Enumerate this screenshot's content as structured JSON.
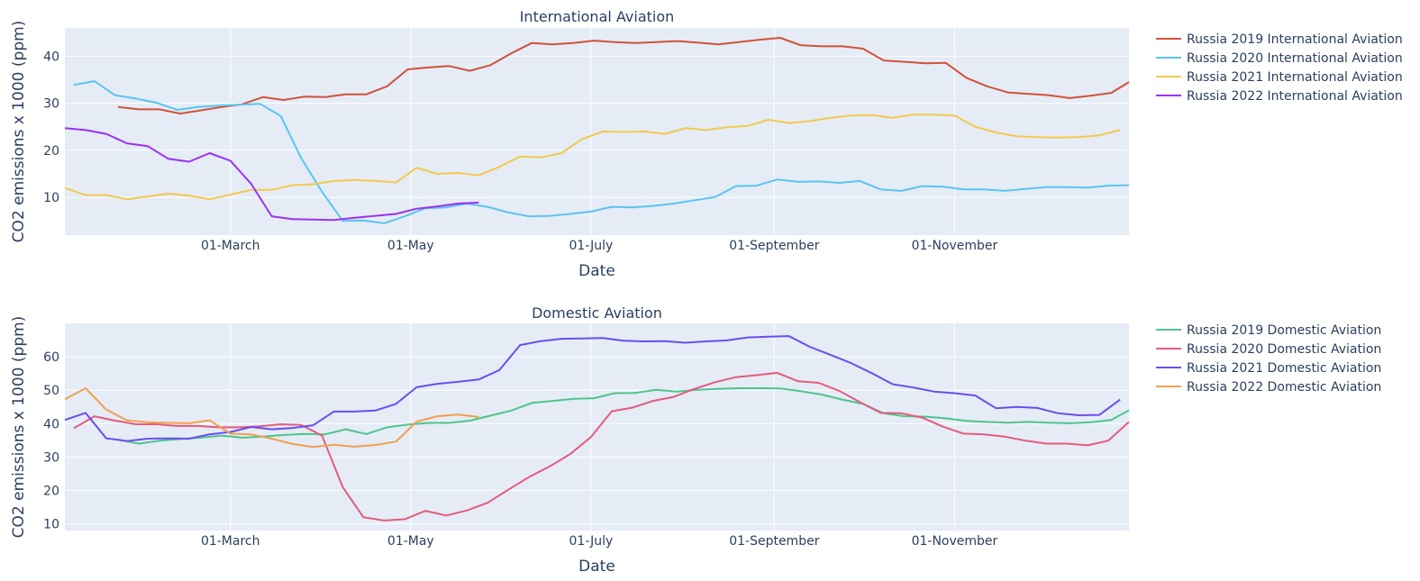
{
  "chart_data": [
    {
      "type": "line",
      "title": "International Aviation",
      "xlabel": "Date",
      "ylabel": "CO2 emissions x 1000 (ppm)",
      "x_ticks": [
        {
          "label": "01-March",
          "day": 60
        },
        {
          "label": "01-May",
          "day": 121
        },
        {
          "label": "01-July",
          "day": 182
        },
        {
          "label": "01-September",
          "day": 244
        },
        {
          "label": "01-November",
          "day": 305
        }
      ],
      "xlim": [
        4,
        364
      ],
      "ylim": [
        2,
        46
      ],
      "y_ticks": [
        10,
        20,
        30,
        40
      ],
      "grid": true,
      "legend_position": "right",
      "series": [
        {
          "name": "Russia 2019 International Aviation",
          "color": "#d0523a",
          "x": [
            22,
            29,
            36,
            43,
            50,
            57,
            64,
            71,
            78,
            85,
            92,
            99,
            106,
            113,
            120,
            127,
            134,
            141,
            148,
            155,
            162,
            169,
            176,
            183,
            190,
            197,
            204,
            211,
            218,
            225,
            232,
            239,
            246,
            253,
            260,
            267,
            274,
            281,
            288,
            295,
            302,
            309,
            316,
            323,
            330,
            337,
            344,
            351,
            358,
            364
          ],
          "y": [
            29.2,
            28.7,
            28.7,
            27.8,
            28.5,
            29.2,
            29.8,
            31.3,
            30.7,
            31.4,
            31.3,
            31.9,
            31.9,
            33.6,
            37.2,
            37.6,
            37.9,
            36.9,
            38.1,
            40.6,
            42.8,
            42.5,
            42.8,
            43.3,
            43.0,
            42.8,
            43.0,
            43.2,
            42.9,
            42.5,
            43.0,
            43.5,
            43.9,
            42.3,
            42.1,
            42.1,
            41.6,
            39.1,
            38.8,
            38.5,
            38.6,
            35.4,
            33.6,
            32.3,
            32.0,
            31.7,
            31.1,
            31.6,
            32.2,
            34.5
          ]
        },
        {
          "name": "Russia 2020 International Aviation",
          "color": "#5ac4f0",
          "x": [
            7,
            14,
            21,
            28,
            35,
            42,
            49,
            56,
            63,
            70,
            77,
            84,
            91,
            98,
            105,
            112,
            119,
            126,
            133,
            140,
            147,
            154,
            161,
            168,
            175,
            182,
            189,
            196,
            203,
            210,
            217,
            224,
            231,
            238,
            245,
            252,
            259,
            266,
            273,
            280,
            287,
            294,
            301,
            308,
            315,
            322,
            329,
            336,
            343,
            350,
            357,
            364
          ],
          "y": [
            33.9,
            34.7,
            31.7,
            31.0,
            30.1,
            28.6,
            29.2,
            29.5,
            29.7,
            29.9,
            27.3,
            18.3,
            11.2,
            5.0,
            5.1,
            4.5,
            6.0,
            7.7,
            7.9,
            8.7,
            8.0,
            6.8,
            6.0,
            6.1,
            6.5,
            7.0,
            8.0,
            7.9,
            8.2,
            8.7,
            9.4,
            10.1,
            12.4,
            12.5,
            13.8,
            13.3,
            13.4,
            13.1,
            13.5,
            11.7,
            11.4,
            12.4,
            12.3,
            11.7,
            11.7,
            11.4,
            11.8,
            12.2,
            12.2,
            12.1,
            12.5,
            12.6
          ]
        },
        {
          "name": "Russia 2021 International Aviation",
          "color": "#f2c94c",
          "x": [
            4,
            11,
            18,
            25,
            32,
            39,
            46,
            53,
            60,
            67,
            74,
            81,
            88,
            95,
            102,
            109,
            116,
            123,
            130,
            137,
            144,
            151,
            158,
            165,
            172,
            179,
            186,
            193,
            200,
            207,
            214,
            221,
            228,
            235,
            242,
            249,
            256,
            263,
            270,
            277,
            284,
            291,
            298,
            305,
            312,
            319,
            326,
            333,
            340,
            347,
            354,
            361
          ],
          "y": [
            12.0,
            10.5,
            10.5,
            9.6,
            10.2,
            10.8,
            10.4,
            9.6,
            10.6,
            11.6,
            11.6,
            12.6,
            12.8,
            13.5,
            13.7,
            13.5,
            13.2,
            16.3,
            15.0,
            15.2,
            14.7,
            16.5,
            18.7,
            18.5,
            19.4,
            22.4,
            24.0,
            23.9,
            24.0,
            23.5,
            24.7,
            24.3,
            24.9,
            25.2,
            26.5,
            25.8,
            26.2,
            26.9,
            27.4,
            27.5,
            26.9,
            27.6,
            27.6,
            27.4,
            25.0,
            23.8,
            23.0,
            22.8,
            22.7,
            22.8,
            23.2,
            24.3
          ]
        },
        {
          "name": "Russia 2022 International Aviation",
          "color": "#9b30f5",
          "x": [
            4,
            11,
            18,
            25,
            32,
            39,
            46,
            53,
            60,
            67,
            74,
            81,
            88,
            95,
            102,
            109,
            116,
            123,
            130,
            137,
            144
          ],
          "y": [
            24.7,
            24.3,
            23.5,
            21.5,
            20.9,
            18.2,
            17.6,
            19.4,
            17.8,
            12.9,
            6.0,
            5.4,
            5.3,
            5.2,
            5.7,
            6.1,
            6.5,
            7.6,
            8.1,
            8.7,
            8.9
          ]
        }
      ]
    },
    {
      "type": "line",
      "title": "Domestic Aviation",
      "xlabel": "Date",
      "ylabel": "CO2 emissions x 1000 (ppm)",
      "x_ticks": [
        {
          "label": "01-March",
          "day": 60
        },
        {
          "label": "01-May",
          "day": 121
        },
        {
          "label": "01-July",
          "day": 182
        },
        {
          "label": "01-September",
          "day": 244
        },
        {
          "label": "01-November",
          "day": 305
        }
      ],
      "xlim": [
        4,
        364
      ],
      "ylim": [
        8,
        70
      ],
      "y_ticks": [
        10,
        20,
        30,
        40,
        50,
        60
      ],
      "grid": true,
      "legend_position": "right",
      "series": [
        {
          "name": "Russia 2019 Domestic Aviation",
          "color": "#4ec48c",
          "x": [
            22,
            29,
            36,
            43,
            50,
            57,
            64,
            71,
            78,
            85,
            92,
            99,
            106,
            113,
            120,
            127,
            134,
            141,
            148,
            155,
            162,
            169,
            176,
            183,
            190,
            197,
            204,
            211,
            218,
            225,
            232,
            239,
            246,
            253,
            260,
            267,
            274,
            281,
            288,
            295,
            302,
            309,
            316,
            323,
            330,
            337,
            344,
            351,
            358,
            364
          ],
          "y": [
            35.2,
            34.0,
            34.9,
            35.4,
            35.8,
            36.4,
            35.8,
            36.1,
            36.6,
            36.9,
            36.8,
            38.3,
            36.9,
            38.9,
            39.7,
            40.2,
            40.2,
            40.9,
            42.4,
            43.9,
            46.2,
            46.8,
            47.4,
            47.6,
            49.1,
            49.2,
            50.1,
            49.6,
            50.1,
            50.4,
            50.6,
            50.6,
            50.5,
            49.7,
            48.7,
            47.2,
            45.9,
            43.1,
            42.2,
            42.1,
            41.6,
            40.8,
            40.5,
            40.3,
            40.5,
            40.3,
            40.1,
            40.4,
            41.1,
            44.0
          ]
        },
        {
          "name": "Russia 2020 Domestic Aviation",
          "color": "#e55a7d",
          "x": [
            7,
            14,
            21,
            28,
            35,
            42,
            49,
            56,
            63,
            70,
            77,
            84,
            91,
            98,
            105,
            112,
            119,
            126,
            133,
            140,
            147,
            154,
            161,
            168,
            175,
            182,
            189,
            196,
            203,
            210,
            217,
            224,
            231,
            238,
            245,
            252,
            259,
            266,
            273,
            280,
            287,
            294,
            301,
            308,
            315,
            322,
            329,
            336,
            343,
            350,
            357,
            364
          ],
          "y": [
            38.6,
            42.2,
            40.9,
            39.8,
            39.8,
            39.3,
            39.3,
            38.9,
            38.9,
            39.2,
            39.8,
            39.6,
            36.4,
            21.0,
            12.0,
            11.0,
            11.4,
            13.9,
            12.5,
            14.0,
            16.3,
            20.2,
            24.0,
            27.2,
            30.9,
            36.0,
            43.7,
            44.8,
            46.8,
            48.0,
            50.4,
            52.4,
            53.9,
            54.5,
            55.2,
            52.7,
            52.2,
            49.8,
            46.4,
            43.2,
            43.1,
            41.8,
            39.1,
            37.0,
            36.8,
            36.1,
            34.9,
            34.0,
            34.0,
            33.5,
            34.9,
            40.5
          ]
        },
        {
          "name": "Russia 2021 Domestic Aviation",
          "color": "#6a4df0",
          "x": [
            4,
            11,
            18,
            25,
            32,
            39,
            46,
            53,
            60,
            67,
            74,
            81,
            88,
            95,
            102,
            109,
            116,
            123,
            130,
            137,
            144,
            151,
            158,
            165,
            172,
            179,
            186,
            193,
            200,
            207,
            214,
            221,
            228,
            235,
            242,
            249,
            256,
            263,
            270,
            277,
            284,
            291,
            298,
            305,
            312,
            319,
            326,
            333,
            340,
            347,
            354,
            361
          ],
          "y": [
            41.1,
            43.2,
            35.6,
            34.8,
            35.5,
            35.6,
            35.5,
            36.8,
            37.5,
            39.0,
            38.3,
            38.7,
            39.5,
            43.6,
            43.6,
            43.9,
            45.9,
            50.9,
            51.9,
            52.5,
            53.2,
            56.0,
            63.5,
            64.7,
            65.4,
            65.5,
            65.6,
            64.8,
            64.6,
            64.7,
            64.2,
            64.6,
            64.9,
            65.8,
            66.0,
            66.2,
            63.0,
            60.6,
            58.1,
            55.1,
            51.8,
            50.8,
            49.6,
            49.1,
            48.4,
            44.6,
            45.0,
            44.7,
            43.1,
            42.5,
            42.6,
            47.2
          ]
        },
        {
          "name": "Russia 2022 Domestic Aviation",
          "color": "#f0a050",
          "x": [
            4,
            11,
            18,
            25,
            32,
            39,
            46,
            53,
            60,
            67,
            74,
            81,
            88,
            95,
            102,
            109,
            116,
            123,
            130,
            137,
            144
          ],
          "y": [
            47.3,
            50.6,
            44.2,
            41.0,
            40.4,
            40.2,
            40.1,
            41.0,
            37.0,
            36.8,
            35.5,
            33.9,
            33.0,
            33.7,
            33.1,
            33.6,
            34.6,
            40.6,
            42.2,
            42.7,
            42.0
          ]
        }
      ]
    }
  ]
}
